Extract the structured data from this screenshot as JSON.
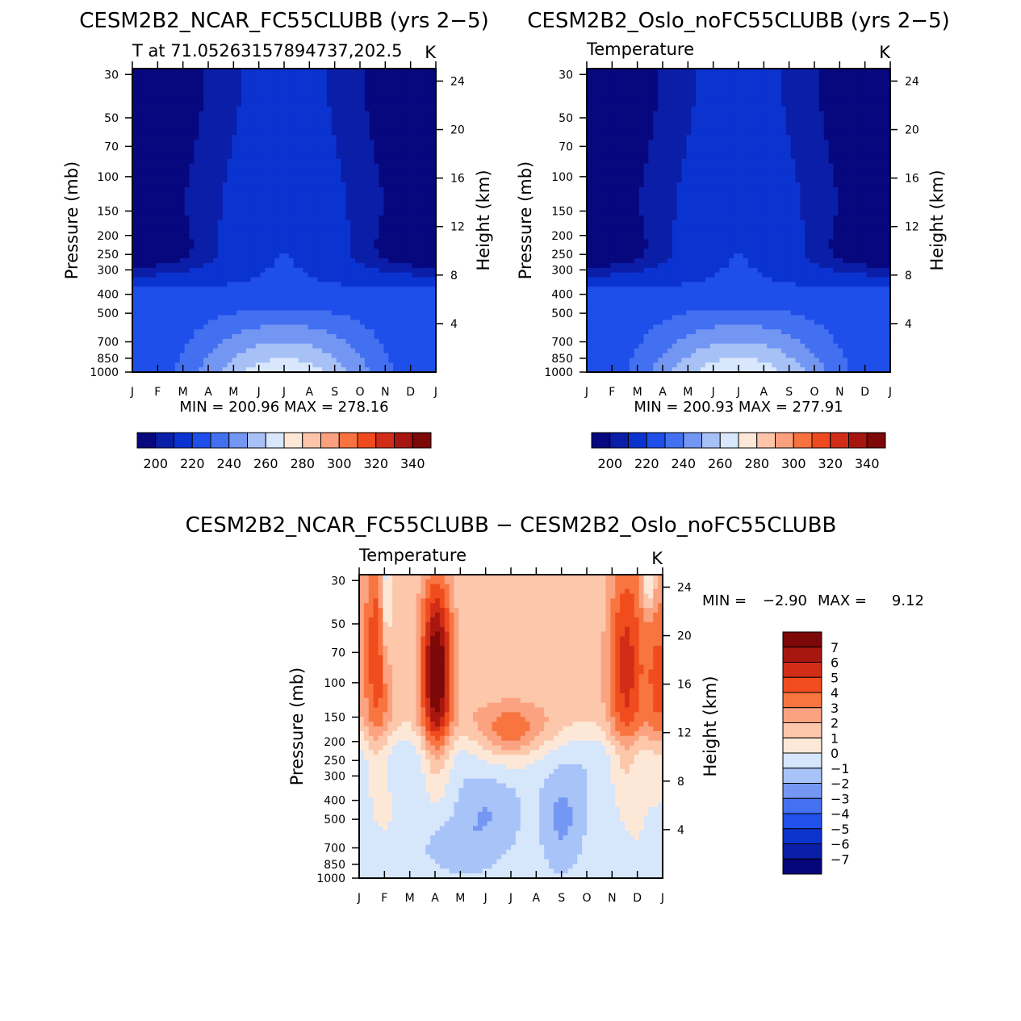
{
  "colors": {
    "abs_palette": [
      "#07077e",
      "#0a1ea8",
      "#0b33d0",
      "#1f4fea",
      "#4370f0",
      "#7396f3",
      "#a7c1f6",
      "#d8e7fb",
      "#fde7d7",
      "#fcc5aa",
      "#fba07f",
      "#f8723f",
      "#ef4a1d",
      "#d12c17",
      "#a6160f",
      "#7c0808"
    ],
    "diff_palette": [
      "#05057a",
      "#0a1ea6",
      "#0c34cd",
      "#2150ea",
      "#4471f0",
      "#7597f4",
      "#a8c3f7",
      "#d6e6fb",
      "#fde8d8",
      "#fcc7ab",
      "#fba280",
      "#f87540",
      "#f04c1e",
      "#d22e17",
      "#a8170f",
      "#7c0808"
    ]
  },
  "chart_data": [
    {
      "id": "left",
      "type": "contour",
      "title": "CESM2B2_NCAR_FC55CLUBB (yrs 2−5)",
      "subtitle_left": "T at 71.05263157894737,202.5",
      "subtitle_right": "K",
      "ylabel_left": "Pressure (mb)",
      "ylabel_right": "Height (km)",
      "x_ticks": [
        "J",
        "F",
        "M",
        "A",
        "M",
        "J",
        "J",
        "A",
        "S",
        "O",
        "N",
        "D",
        "J"
      ],
      "p_ticks": [
        30,
        50,
        70,
        100,
        150,
        200,
        250,
        300,
        400,
        500,
        700,
        850,
        1000
      ],
      "h_ticks": [
        24,
        20,
        16,
        12,
        8,
        4
      ],
      "stats": "MIN = 200.96 MAX = 278.16",
      "min": 200.96,
      "max": 278.16,
      "levels_start": 195,
      "levels_step": 10,
      "colorbar_labels": [
        "200",
        "220",
        "240",
        "260",
        "280",
        "300",
        "320",
        "340"
      ]
    },
    {
      "id": "right",
      "type": "contour",
      "title": "CESM2B2_Oslo_noFC55CLUBB (yrs 2−5)",
      "subtitle_left": "Temperature",
      "subtitle_right": "K",
      "ylabel_left": "Pressure (mb)",
      "ylabel_right": "Height (km)",
      "x_ticks": [
        "J",
        "F",
        "M",
        "A",
        "M",
        "J",
        "J",
        "A",
        "S",
        "O",
        "N",
        "D",
        "J"
      ],
      "p_ticks": [
        30,
        50,
        70,
        100,
        150,
        200,
        250,
        300,
        400,
        500,
        700,
        850,
        1000
      ],
      "h_ticks": [
        24,
        20,
        16,
        12,
        8,
        4
      ],
      "stats": "MIN = 200.93 MAX = 277.91",
      "min": 200.93,
      "max": 277.91,
      "levels_start": 195,
      "levels_step": 10,
      "colorbar_labels": [
        "200",
        "220",
        "240",
        "260",
        "280",
        "300",
        "320",
        "340"
      ]
    },
    {
      "id": "diff",
      "type": "contour",
      "title": "CESM2B2_NCAR_FC55CLUBB − CESM2B2_Oslo_noFC55CLUBB",
      "subtitle_left": "Temperature",
      "subtitle_right": "K",
      "ylabel_left": "Pressure (mb)",
      "ylabel_right": "Height (km)",
      "x_ticks": [
        "J",
        "F",
        "M",
        "A",
        "M",
        "J",
        "J",
        "A",
        "S",
        "O",
        "N",
        "D",
        "J"
      ],
      "p_ticks": [
        30,
        50,
        70,
        100,
        150,
        200,
        250,
        300,
        400,
        500,
        700,
        850,
        1000
      ],
      "h_ticks": [
        24,
        20,
        16,
        12,
        8,
        4
      ],
      "stats_min_label": "MIN =",
      "stats_min": "−2.90",
      "stats_max_label": "MAX =",
      "stats_max": "9.12",
      "min": -2.9,
      "max": 9.12,
      "levels_start": -7,
      "levels_step": 1,
      "colorbar_labels": [
        "7",
        "6",
        "5",
        "4",
        "3",
        "2",
        "1",
        "0",
        "−1",
        "−2",
        "−3",
        "−4",
        "−5",
        "−6",
        "−7"
      ]
    }
  ]
}
